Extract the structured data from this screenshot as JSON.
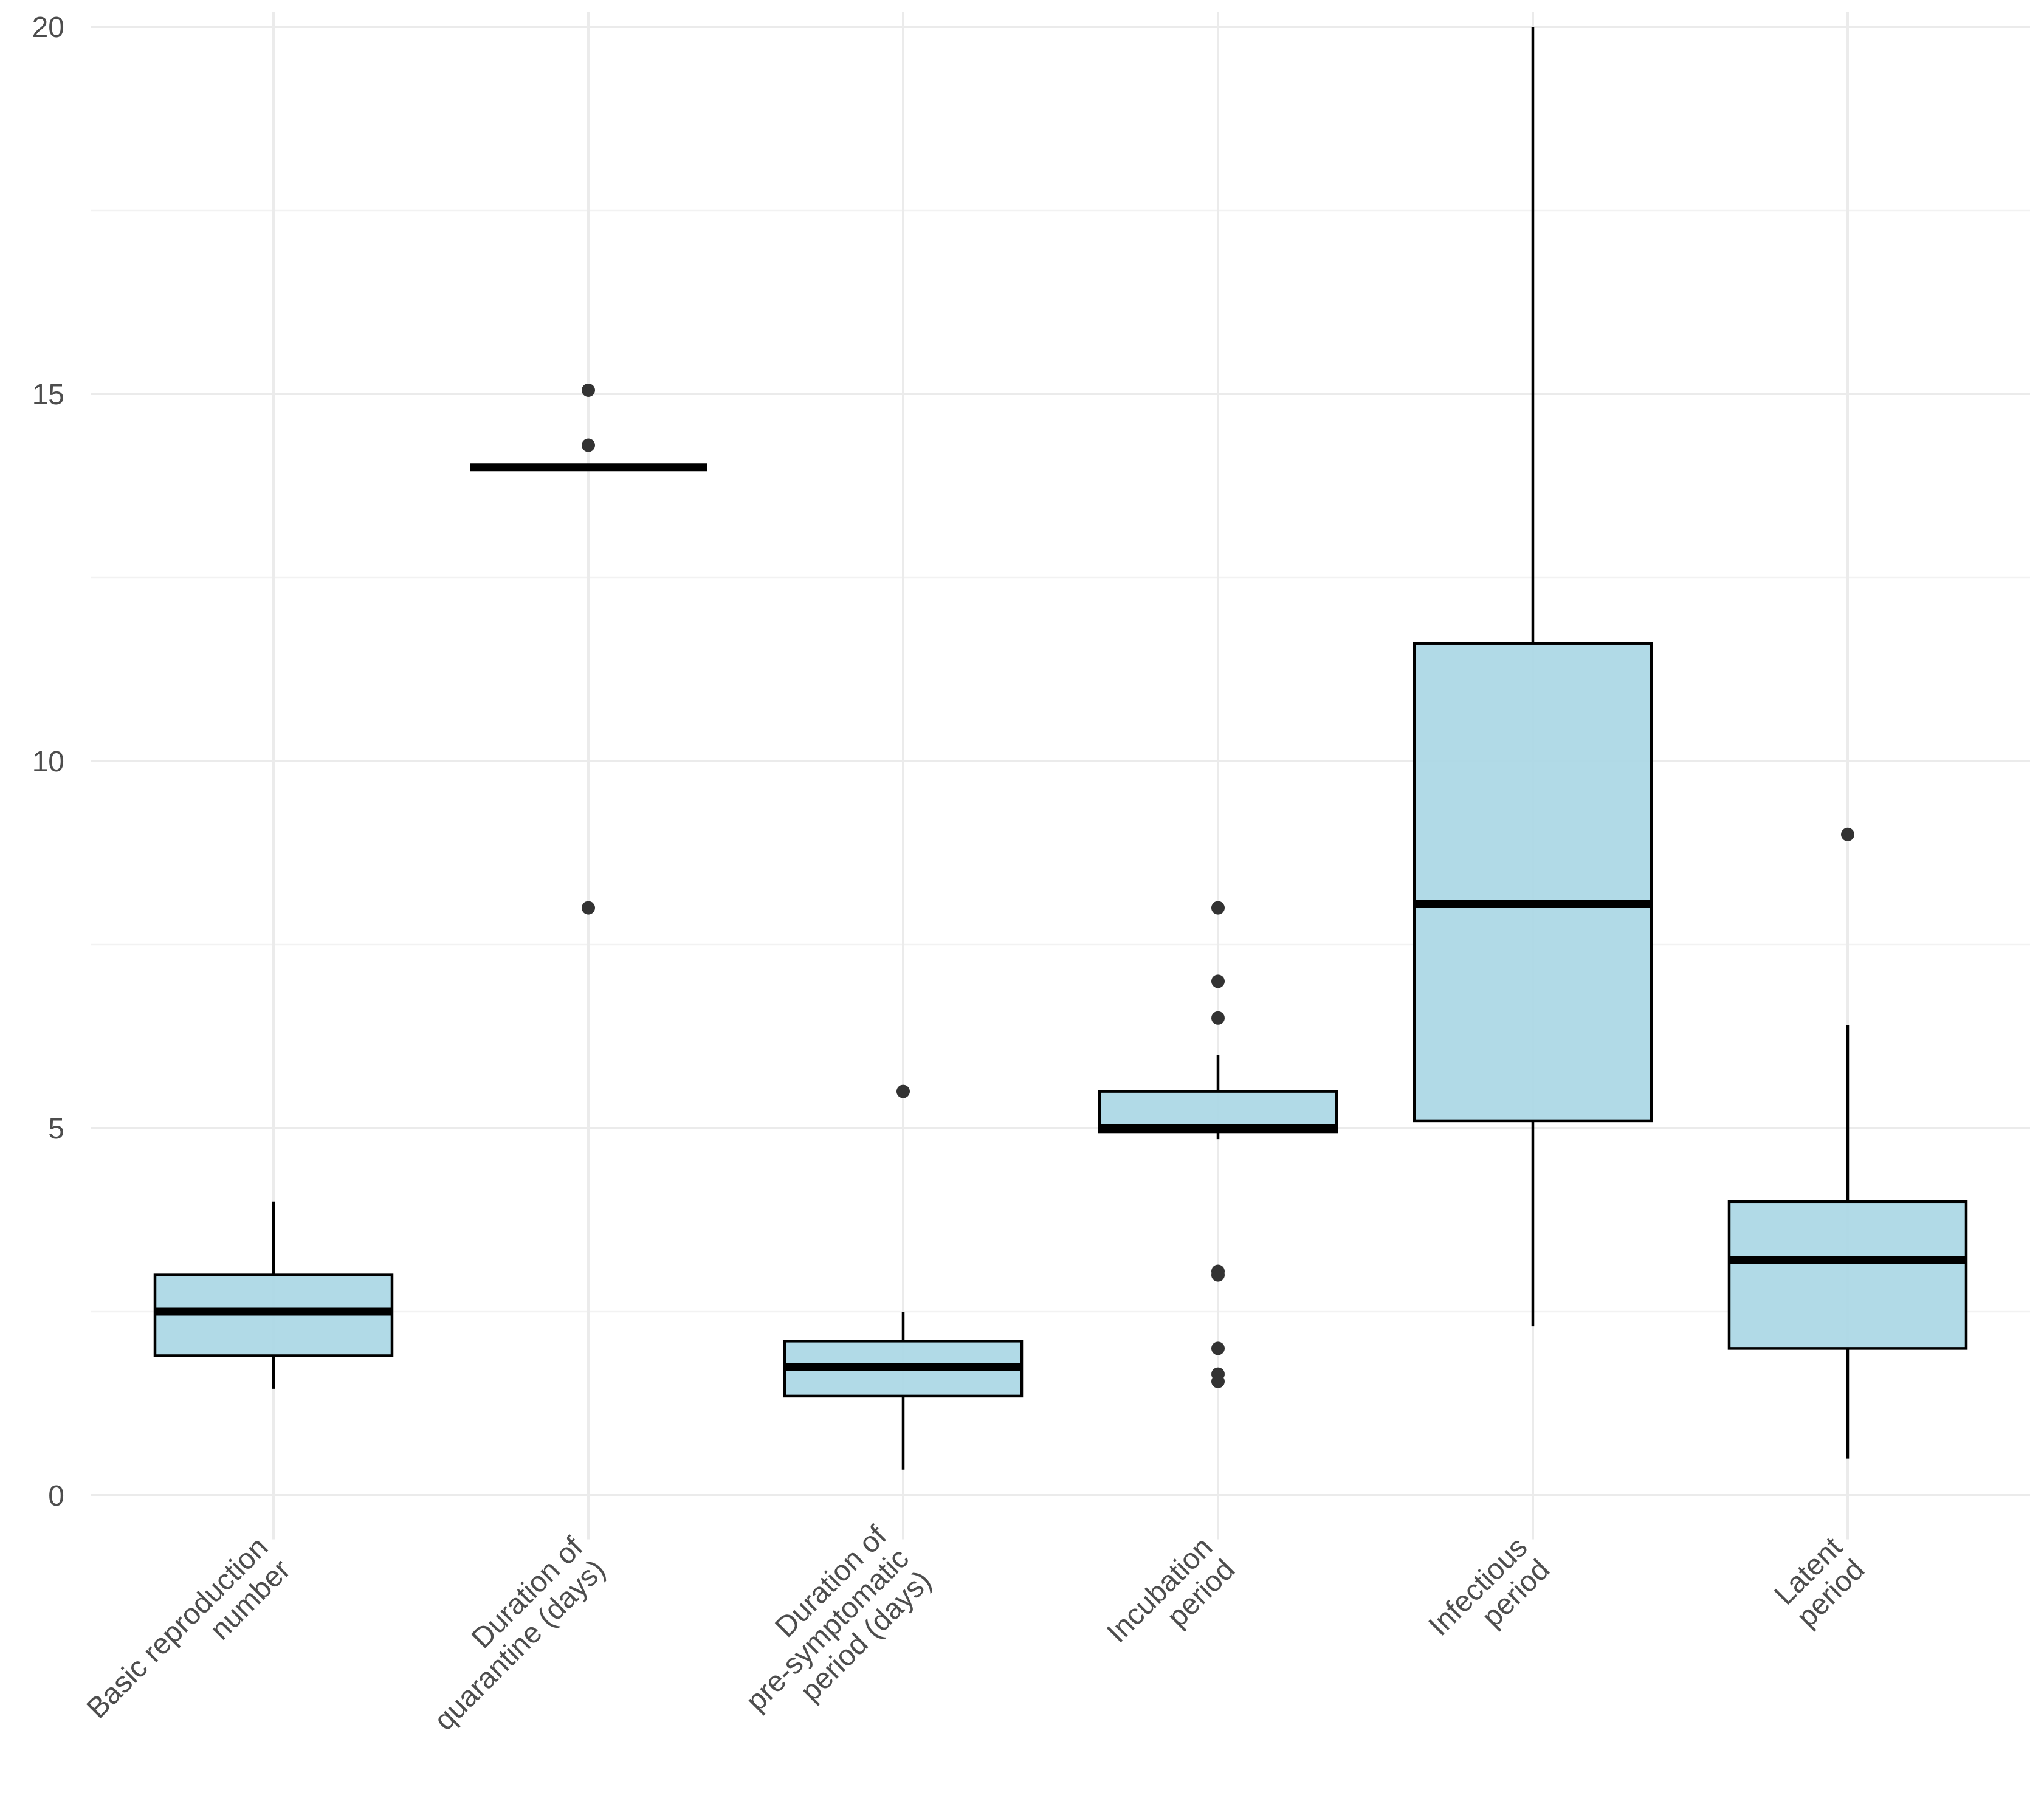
{
  "chart_data": {
    "type": "boxplot",
    "title": "",
    "xlabel": "",
    "ylabel": "",
    "ylim": [
      -0.6,
      20.2
    ],
    "y_ticks": [
      0,
      5,
      10,
      15,
      20
    ],
    "grid": true,
    "legend": "none",
    "colors": {
      "box_fill": "#ADD8E6",
      "box_edge": "#000000",
      "outlier": "#333333",
      "grid": "#ebebeb",
      "tick_text": "#4d4d4d"
    },
    "categories": [
      {
        "label_lines": [
          "Basic reproduction",
          "number"
        ],
        "whisker_low": 1.45,
        "q1": 1.9,
        "median": 2.5,
        "q3": 3.0,
        "whisker_high": 4.0,
        "outliers": []
      },
      {
        "label_lines": [
          "Duration of",
          "quarantine (days)"
        ],
        "whisker_low": 14,
        "q1": 14,
        "median": 14,
        "q3": 14,
        "whisker_high": 14,
        "outliers": [
          15.05,
          14.3,
          8.0
        ]
      },
      {
        "label_lines": [
          "Duration of",
          "pre-symptomatic",
          "period (days)"
        ],
        "whisker_low": 0.35,
        "q1": 1.35,
        "median": 1.75,
        "q3": 2.1,
        "whisker_high": 2.5,
        "outliers": [
          5.5
        ]
      },
      {
        "label_lines": [
          "Incubation",
          "period"
        ],
        "whisker_low": 4.85,
        "q1": 4.95,
        "median": 5.0,
        "q3": 5.5,
        "whisker_high": 6.0,
        "outliers": [
          8.0,
          7.0,
          6.5,
          3.05,
          3.0,
          2.0,
          1.65,
          1.55
        ]
      },
      {
        "label_lines": [
          "Infectious",
          "period"
        ],
        "whisker_low": 2.3,
        "q1": 5.1,
        "median": 8.05,
        "q3": 11.6,
        "whisker_high": 20.0,
        "outliers": []
      },
      {
        "label_lines": [
          "Latent",
          "period"
        ],
        "whisker_low": 0.5,
        "q1": 2.0,
        "median": 3.2,
        "q3": 4.0,
        "whisker_high": 6.4,
        "outliers": [
          9.0
        ]
      }
    ]
  }
}
